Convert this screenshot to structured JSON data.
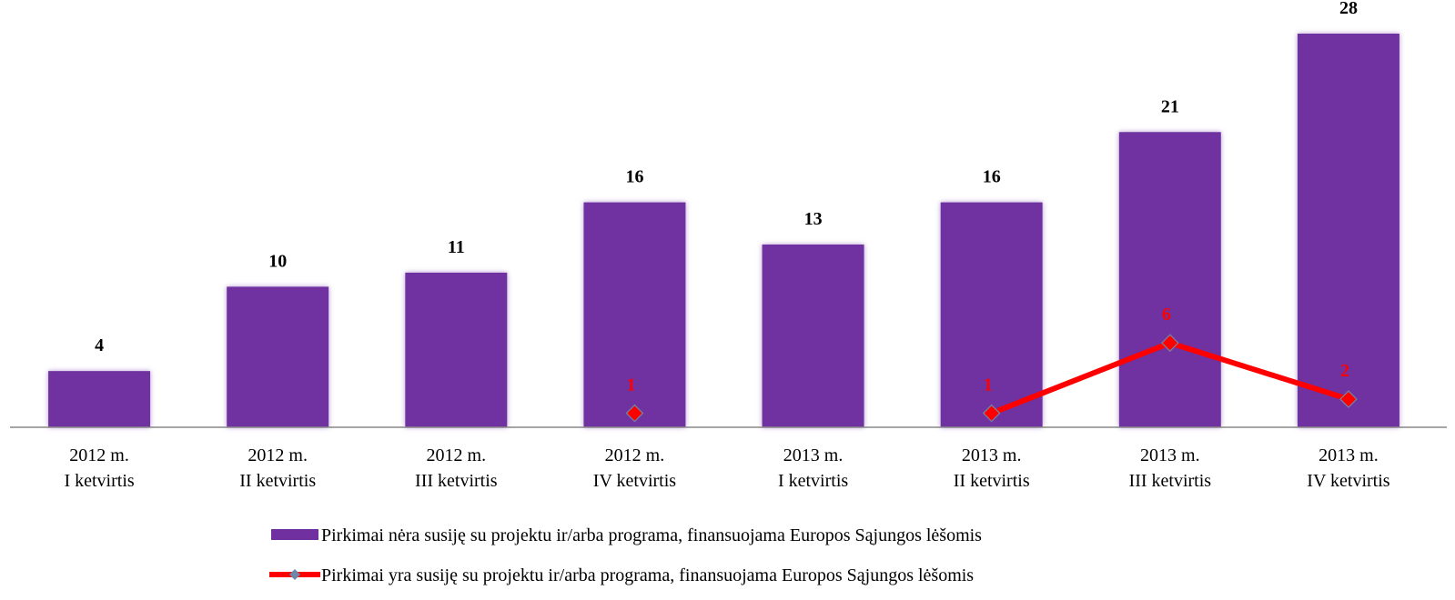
{
  "chart_data": {
    "type": "bar",
    "categories": [
      [
        "2012 m.",
        "I ketvirtis"
      ],
      [
        "2012 m.",
        "II ketvirtis"
      ],
      [
        "2012 m.",
        "III ketvirtis"
      ],
      [
        "2012 m.",
        "IV ketvirtis"
      ],
      [
        "2013 m.",
        "I ketvirtis"
      ],
      [
        "2013 m.",
        "II ketvirtis"
      ],
      [
        "2013 m.",
        "III ketvirtis"
      ],
      [
        "2013 m.",
        "IV ketvirtis"
      ]
    ],
    "series": [
      {
        "name": "Pirkimai nėra susiję su projektu ir/arba programa, finansuojama Europos Sąjungos lėšomis",
        "type": "bar",
        "color": "#7030a0",
        "values": [
          4,
          10,
          11,
          16,
          13,
          16,
          21,
          28
        ]
      },
      {
        "name": "Pirkimai yra susiję su projektu ir/arba programa, finansuojama Europos Sąjungos lėšomis",
        "type": "line",
        "color": "#ff0000",
        "values": [
          null,
          null,
          null,
          1,
          null,
          1,
          6,
          2
        ]
      }
    ],
    "ylim": [
      0,
      28
    ],
    "legend": "bottom"
  }
}
